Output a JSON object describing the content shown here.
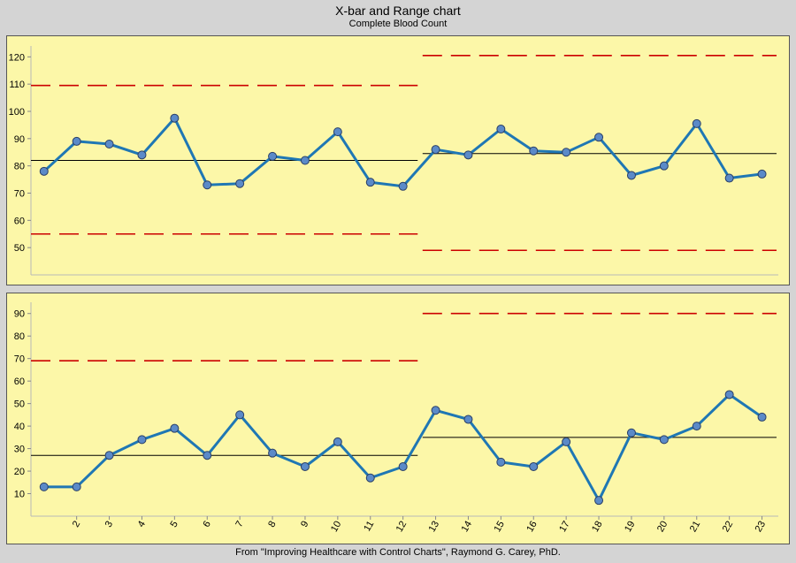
{
  "chart_title": "X-bar and Range chart",
  "chart_subtitle": "Complete Blood Count",
  "footer": "From \"Improving Healthcare with Control Charts\", Raymond G. Carey, PhD.",
  "colors": {
    "background": "#d4d4d4",
    "panel": "#fcf7a8",
    "series_line": "#1f77b4",
    "marker_fill": "#5b8ac8",
    "control_limit": "#cc0000",
    "center_line": "#000000"
  },
  "chart_data": [
    {
      "type": "line",
      "name": "X-bar chart",
      "x": [
        1,
        2,
        3,
        4,
        5,
        6,
        7,
        8,
        9,
        10,
        11,
        12,
        13,
        14,
        15,
        16,
        17,
        18,
        19,
        20,
        21,
        22,
        23
      ],
      "values": [
        78,
        89,
        88,
        84,
        97.5,
        73,
        73.5,
        83.5,
        82,
        92.5,
        74,
        72.5,
        86,
        84,
        93.5,
        85.5,
        85,
        90.5,
        76.5,
        80,
        95.5,
        75.5,
        77
      ],
      "ylim": [
        40,
        124
      ],
      "yticks": [
        50,
        60,
        70,
        80,
        90,
        100,
        110,
        120
      ],
      "xlim": [
        0.6,
        23.5
      ],
      "phases": [
        {
          "start": 1,
          "end": 12,
          "center": 82,
          "ucl": 109.5,
          "lcl": 55
        },
        {
          "start": 13,
          "end": 23,
          "center": 84.5,
          "ucl": 120.5,
          "lcl": 49
        }
      ]
    },
    {
      "type": "line",
      "name": "Range chart",
      "x": [
        1,
        2,
        3,
        4,
        5,
        6,
        7,
        8,
        9,
        10,
        11,
        12,
        13,
        14,
        15,
        16,
        17,
        18,
        19,
        20,
        21,
        22,
        23
      ],
      "values": [
        13,
        13,
        27,
        34,
        39,
        27,
        45,
        28,
        22,
        33,
        17,
        22,
        47,
        43,
        24,
        22,
        33,
        7,
        37,
        34,
        40,
        54,
        44
      ],
      "ylim": [
        0,
        95
      ],
      "yticks": [
        10,
        20,
        30,
        40,
        50,
        60,
        70,
        80,
        90
      ],
      "xlim": [
        0.6,
        23.5
      ],
      "xticks": [
        2,
        3,
        4,
        5,
        6,
        7,
        8,
        9,
        10,
        11,
        12,
        13,
        14,
        15,
        16,
        17,
        18,
        19,
        20,
        21,
        22,
        23
      ],
      "phases": [
        {
          "start": 1,
          "end": 12,
          "center": 27,
          "ucl": 69,
          "lcl": null
        },
        {
          "start": 13,
          "end": 23,
          "center": 35,
          "ucl": 90,
          "lcl": null
        }
      ]
    }
  ]
}
